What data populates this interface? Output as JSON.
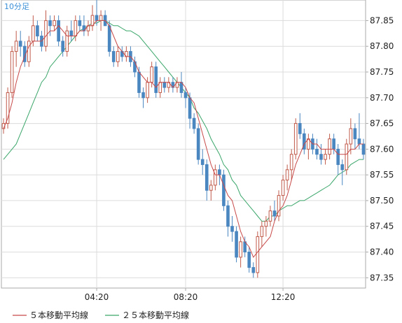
{
  "chart_data": {
    "type": "candlestick",
    "period_label": "10分足",
    "x_tick_labels": [
      "04:20",
      "08:20",
      "12:20"
    ],
    "y_ticks": [
      87.35,
      87.4,
      87.45,
      87.5,
      87.55,
      87.6,
      87.65,
      87.7,
      87.75,
      87.8,
      87.85
    ],
    "ylim": [
      87.33,
      87.89
    ],
    "x_count": 86,
    "x_tick_index": [
      22,
      43,
      66
    ],
    "grid": true,
    "colors": {
      "up": "#c05a4a",
      "down": "#4a86c0",
      "ma5": "#c84848",
      "ma25": "#3aa66a",
      "grid": "#dcdcdc",
      "frame": "#aaaaaa"
    },
    "legend": [
      {
        "label": "５本移動平均線",
        "color": "#c84848"
      },
      {
        "label": "２５本移動平均線",
        "color": "#3aa66a"
      }
    ],
    "ohlc": [
      [
        87.64,
        87.66,
        87.63,
        87.65
      ],
      [
        87.65,
        87.72,
        87.64,
        87.71
      ],
      [
        87.71,
        87.8,
        87.7,
        87.79
      ],
      [
        87.79,
        87.83,
        87.76,
        87.81
      ],
      [
        87.81,
        87.83,
        87.78,
        87.8
      ],
      [
        87.8,
        87.81,
        87.76,
        87.77
      ],
      [
        87.77,
        87.82,
        87.76,
        87.81
      ],
      [
        87.81,
        87.86,
        87.8,
        87.84
      ],
      [
        87.84,
        87.85,
        87.81,
        87.82
      ],
      [
        87.82,
        87.83,
        87.79,
        87.8
      ],
      [
        87.8,
        87.87,
        87.79,
        87.85
      ],
      [
        87.85,
        87.86,
        87.82,
        87.84
      ],
      [
        87.84,
        87.86,
        87.83,
        87.85
      ],
      [
        87.85,
        87.86,
        87.8,
        87.81
      ],
      [
        87.81,
        87.82,
        87.78,
        87.79
      ],
      [
        87.79,
        87.84,
        87.78,
        87.83
      ],
      [
        87.83,
        87.85,
        87.81,
        87.82
      ],
      [
        87.82,
        87.86,
        87.81,
        87.85
      ],
      [
        87.85,
        87.86,
        87.83,
        87.84
      ],
      [
        87.84,
        87.86,
        87.82,
        87.83
      ],
      [
        87.83,
        87.85,
        87.82,
        87.84
      ],
      [
        87.84,
        87.88,
        87.83,
        87.86
      ],
      [
        87.86,
        87.89,
        87.84,
        87.85
      ],
      [
        87.85,
        87.87,
        87.83,
        87.86
      ],
      [
        87.86,
        87.87,
        87.84,
        87.84
      ],
      [
        87.84,
        87.85,
        87.78,
        87.79
      ],
      [
        87.79,
        87.8,
        87.76,
        87.77
      ],
      [
        87.77,
        87.8,
        87.76,
        87.79
      ],
      [
        87.79,
        87.8,
        87.77,
        87.78
      ],
      [
        87.78,
        87.8,
        87.77,
        87.79
      ],
      [
        87.79,
        87.8,
        87.76,
        87.77
      ],
      [
        87.77,
        87.78,
        87.74,
        87.75
      ],
      [
        87.75,
        87.76,
        87.7,
        87.71
      ],
      [
        87.71,
        87.72,
        87.68,
        87.7
      ],
      [
        87.7,
        87.74,
        87.69,
        87.73
      ],
      [
        87.73,
        87.77,
        87.72,
        87.76
      ],
      [
        87.76,
        87.77,
        87.7,
        87.71
      ],
      [
        87.71,
        87.74,
        87.7,
        87.73
      ],
      [
        87.73,
        87.74,
        87.71,
        87.72
      ],
      [
        87.72,
        87.74,
        87.71,
        87.73
      ],
      [
        87.73,
        87.74,
        87.71,
        87.72
      ],
      [
        87.72,
        87.74,
        87.71,
        87.73
      ],
      [
        87.73,
        87.75,
        87.7,
        87.71
      ],
      [
        87.71,
        87.72,
        87.68,
        87.7
      ],
      [
        87.7,
        87.71,
        87.64,
        87.66
      ],
      [
        87.66,
        87.67,
        87.63,
        87.64
      ],
      [
        87.64,
        87.65,
        87.57,
        87.58
      ],
      [
        87.58,
        87.6,
        87.55,
        87.57
      ],
      [
        87.57,
        87.58,
        87.5,
        87.52
      ],
      [
        87.52,
        87.54,
        87.5,
        87.53
      ],
      [
        87.53,
        87.57,
        87.52,
        87.56
      ],
      [
        87.56,
        87.57,
        87.53,
        87.55
      ],
      [
        87.55,
        87.56,
        87.48,
        87.49
      ],
      [
        87.49,
        87.5,
        87.43,
        87.45
      ],
      [
        87.45,
        87.47,
        87.42,
        87.44
      ],
      [
        87.44,
        87.45,
        87.38,
        87.39
      ],
      [
        87.39,
        87.43,
        87.37,
        87.42
      ],
      [
        87.42,
        87.43,
        87.39,
        87.4
      ],
      [
        87.4,
        87.41,
        87.36,
        87.37
      ],
      [
        87.37,
        87.38,
        87.35,
        87.36
      ],
      [
        87.36,
        87.44,
        87.35,
        87.43
      ],
      [
        87.43,
        87.46,
        87.41,
        87.45
      ],
      [
        87.45,
        87.47,
        87.43,
        87.46
      ],
      [
        87.46,
        87.49,
        87.45,
        87.48
      ],
      [
        87.48,
        87.5,
        87.46,
        87.47
      ],
      [
        87.47,
        87.52,
        87.46,
        87.51
      ],
      [
        87.51,
        87.55,
        87.5,
        87.54
      ],
      [
        87.54,
        87.57,
        87.52,
        87.56
      ],
      [
        87.56,
        87.6,
        87.54,
        87.59
      ],
      [
        87.59,
        87.66,
        87.58,
        87.65
      ],
      [
        87.65,
        87.67,
        87.62,
        87.63
      ],
      [
        87.63,
        87.64,
        87.59,
        87.6
      ],
      [
        87.6,
        87.63,
        87.58,
        87.62
      ],
      [
        87.62,
        87.63,
        87.59,
        87.6
      ],
      [
        87.6,
        87.62,
        87.58,
        87.59
      ],
      [
        87.59,
        87.61,
        87.57,
        87.58
      ],
      [
        87.58,
        87.6,
        87.57,
        87.59
      ],
      [
        87.59,
        87.63,
        87.58,
        87.62
      ],
      [
        87.62,
        87.63,
        87.59,
        87.6
      ],
      [
        87.6,
        87.61,
        87.55,
        87.57
      ],
      [
        87.57,
        87.58,
        87.53,
        87.56
      ],
      [
        87.56,
        87.62,
        87.55,
        87.61
      ],
      [
        87.61,
        87.66,
        87.59,
        87.64
      ],
      [
        87.64,
        87.65,
        87.6,
        87.62
      ],
      [
        87.62,
        87.67,
        87.6,
        87.61
      ],
      [
        87.61,
        87.62,
        87.58,
        87.59
      ]
    ],
    "ma5": [
      87.64,
      87.66,
      87.69,
      87.73,
      87.76,
      87.78,
      87.8,
      87.81,
      87.81,
      87.81,
      87.82,
      87.83,
      87.83,
      87.84,
      87.83,
      87.82,
      87.82,
      87.82,
      87.83,
      87.83,
      87.84,
      87.84,
      87.85,
      87.85,
      87.85,
      87.84,
      87.82,
      87.8,
      87.79,
      87.78,
      87.78,
      87.77,
      87.75,
      87.74,
      87.73,
      87.73,
      87.72,
      87.73,
      87.73,
      87.73,
      87.72,
      87.73,
      87.73,
      87.72,
      87.7,
      87.69,
      87.66,
      87.63,
      87.6,
      87.57,
      87.55,
      87.55,
      87.53,
      87.51,
      87.5,
      87.47,
      87.44,
      87.42,
      87.41,
      87.39,
      87.4,
      87.41,
      87.42,
      87.43,
      87.46,
      87.48,
      87.49,
      87.51,
      87.54,
      87.57,
      87.59,
      87.61,
      87.62,
      87.61,
      87.61,
      87.6,
      87.6,
      87.6,
      87.6,
      87.59,
      87.59,
      87.59,
      87.6,
      87.6,
      87.61,
      87.61
    ],
    "ma25": [
      87.58,
      87.59,
      87.6,
      87.61,
      87.63,
      87.65,
      87.67,
      87.69,
      87.71,
      87.73,
      87.74,
      87.76,
      87.77,
      87.78,
      87.79,
      87.8,
      87.81,
      87.82,
      87.83,
      87.835,
      87.84,
      87.845,
      87.845,
      87.85,
      87.85,
      87.845,
      87.84,
      87.84,
      87.835,
      87.83,
      87.83,
      87.825,
      87.82,
      87.81,
      87.8,
      87.79,
      87.78,
      87.77,
      87.76,
      87.75,
      87.74,
      87.73,
      87.72,
      87.71,
      87.7,
      87.68,
      87.67,
      87.655,
      87.64,
      87.62,
      87.605,
      87.59,
      87.57,
      87.56,
      87.54,
      87.53,
      87.51,
      87.5,
      87.49,
      87.48,
      87.47,
      87.46,
      87.46,
      87.47,
      87.47,
      87.48,
      87.485,
      87.49,
      87.49,
      87.495,
      87.5,
      87.5,
      87.505,
      87.51,
      87.515,
      87.52,
      87.525,
      87.53,
      87.54,
      87.55,
      87.555,
      87.56,
      87.57,
      87.575,
      87.58,
      87.58
    ]
  }
}
